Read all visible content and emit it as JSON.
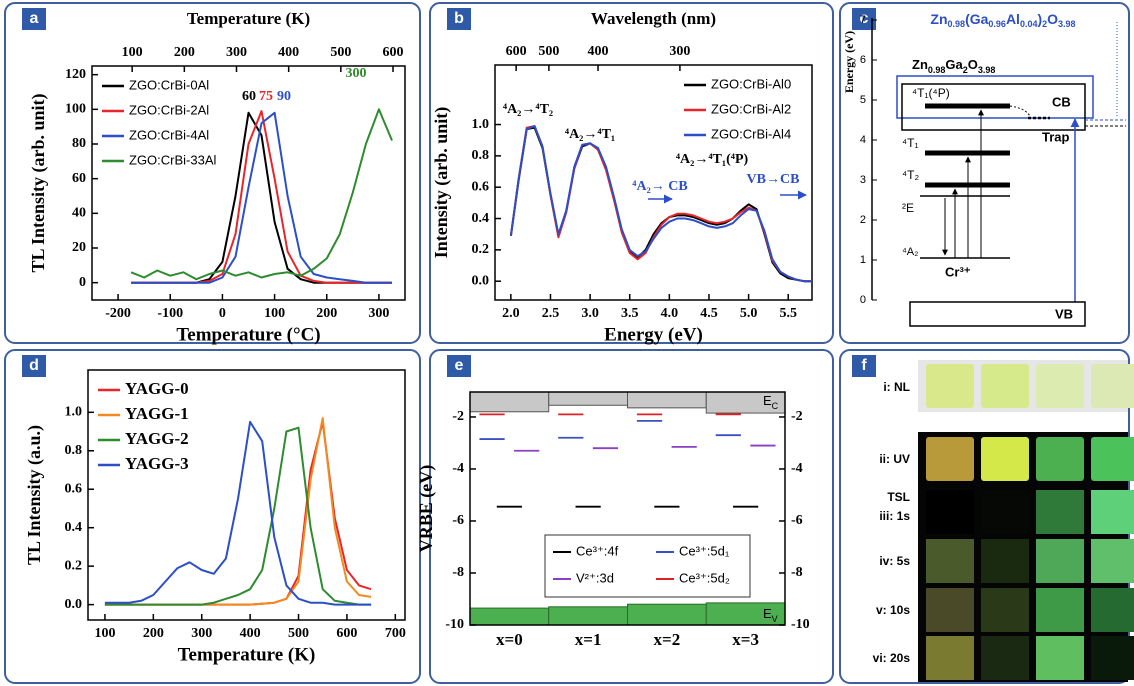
{
  "chart_data": [
    {
      "panel": "a",
      "type": "line",
      "x_label": "Temperature (°C)",
      "y_label": "TL Intensity (arb. unit)",
      "x2_label": "Temperature (K)",
      "x": [
        -175,
        -150,
        -125,
        -100,
        -75,
        -50,
        -25,
        0,
        25,
        50,
        75,
        100,
        125,
        150,
        175,
        200,
        225,
        250,
        275,
        300,
        325
      ],
      "series": [
        {
          "name": "ZGO:CrBi-0Al",
          "color": "#000000",
          "values": [
            0,
            0,
            0,
            0,
            0,
            0,
            2,
            12,
            50,
            98,
            85,
            35,
            8,
            2,
            0,
            0,
            0,
            0,
            0,
            0,
            0
          ]
        },
        {
          "name": "ZGO:CrBi-2Al",
          "color": "#e8262a",
          "values": [
            0,
            0,
            0,
            0,
            0,
            0,
            1,
            5,
            28,
            80,
            99,
            60,
            18,
            4,
            1,
            0,
            0,
            0,
            0,
            0,
            0
          ]
        },
        {
          "name": "ZGO:CrBi-4Al",
          "color": "#2c4fc9",
          "values": [
            0,
            0,
            0,
            0,
            0,
            0,
            0,
            3,
            15,
            55,
            92,
            98,
            50,
            15,
            5,
            3,
            2,
            1,
            0,
            0,
            0
          ]
        },
        {
          "name": "ZGO:CrBi-33Al",
          "color": "#2e8b2e",
          "values": [
            6,
            3,
            7,
            4,
            6,
            2,
            5,
            7,
            4,
            6,
            3,
            5,
            6,
            4,
            8,
            14,
            28,
            52,
            80,
            100,
            82
          ]
        }
      ],
      "xlim": [
        -250,
        350
      ],
      "xticks": [
        -200,
        -100,
        0,
        100,
        200,
        300
      ],
      "x2lim": [
        23,
        623
      ],
      "x2ticks": [
        100,
        200,
        300,
        400,
        500,
        600
      ],
      "ylim": [
        -10,
        125
      ],
      "yticks": [
        0,
        20,
        40,
        60,
        80,
        100,
        120
      ],
      "legend": "upper left",
      "annotations": [
        {
          "text": "60",
          "color": "#000000"
        },
        {
          "text": "75",
          "color": "#e8262a"
        },
        {
          "text": "90",
          "color": "#2c4fc9"
        },
        {
          "text": "300",
          "color": "#2e8b2e"
        }
      ]
    },
    {
      "panel": "b",
      "type": "line",
      "x_label": "Energy (eV)",
      "y_label": "Intensity (arb. unit)",
      "x2_label": "Wavelength (nm)",
      "x": [
        2,
        2.1,
        2.2,
        2.3,
        2.4,
        2.5,
        2.6,
        2.7,
        2.8,
        2.9,
        3,
        3.1,
        3.2,
        3.3,
        3.4,
        3.5,
        3.6,
        3.7,
        3.8,
        3.9,
        4,
        4.1,
        4.2,
        4.3,
        4.4,
        4.5,
        4.6,
        4.7,
        4.8,
        4.9,
        5,
        5.1,
        5.2,
        5.3,
        5.4,
        5.5,
        5.6,
        5.7,
        5.8
      ],
      "series": [
        {
          "name": "ZGO:CrBi-Al0",
          "color": "#000000",
          "values": [
            0.29,
            0.65,
            0.97,
            0.98,
            0.85,
            0.55,
            0.29,
            0.45,
            0.72,
            0.86,
            0.88,
            0.84,
            0.72,
            0.53,
            0.32,
            0.19,
            0.15,
            0.2,
            0.3,
            0.37,
            0.41,
            0.42,
            0.42,
            0.41,
            0.39,
            0.37,
            0.36,
            0.37,
            0.4,
            0.45,
            0.49,
            0.46,
            0.3,
            0.12,
            0.05,
            0.02,
            0.01,
            0,
            0
          ]
        },
        {
          "name": "ZGO:CrBi-Al2",
          "color": "#e8262a",
          "values": [
            0.29,
            0.66,
            0.98,
            0.99,
            0.86,
            0.55,
            0.28,
            0.44,
            0.72,
            0.87,
            0.88,
            0.84,
            0.71,
            0.52,
            0.31,
            0.18,
            0.14,
            0.18,
            0.28,
            0.36,
            0.41,
            0.43,
            0.43,
            0.42,
            0.4,
            0.38,
            0.37,
            0.38,
            0.4,
            0.44,
            0.47,
            0.45,
            0.31,
            0.13,
            0.06,
            0.03,
            0.01,
            0,
            0
          ]
        },
        {
          "name": "ZGO:CrBi-Al4",
          "color": "#2c4fc9",
          "values": [
            0.29,
            0.66,
            0.97,
            0.99,
            0.86,
            0.56,
            0.3,
            0.45,
            0.73,
            0.87,
            0.88,
            0.85,
            0.73,
            0.54,
            0.33,
            0.2,
            0.16,
            0.19,
            0.27,
            0.34,
            0.38,
            0.4,
            0.4,
            0.39,
            0.37,
            0.35,
            0.34,
            0.35,
            0.37,
            0.42,
            0.46,
            0.45,
            0.32,
            0.14,
            0.06,
            0.03,
            0.01,
            0,
            0
          ]
        }
      ],
      "xlim": [
        1.8,
        5.8
      ],
      "xticks": [
        {
          "value": 2,
          "label": "2.0"
        },
        2.5,
        {
          "value": 3,
          "label": "3.0"
        },
        3.5,
        {
          "value": 4,
          "label": "4.0"
        },
        4.5,
        {
          "value": 5,
          "label": "5.0"
        },
        5.5
      ],
      "x2ticks": [
        600,
        500,
        400,
        300
      ],
      "ylim": [
        -0.12,
        1.38
      ],
      "yticks": [
        {
          "value": 0,
          "label": "0.0"
        },
        0.2,
        0.4,
        0.6,
        0.8,
        {
          "value": 1,
          "label": "1.0"
        }
      ],
      "legend": "upper right",
      "annotations": [
        {
          "text": "⁴A₂→⁴T₂",
          "color": "#000000"
        },
        {
          "text": "⁴A₂→⁴T₁",
          "color": "#000000"
        },
        {
          "text": "⁴A₂→⁴T₁(⁴P)",
          "color": "#000000"
        },
        {
          "text": "⁴A₂→ CB",
          "color": "#2c4fc9"
        },
        {
          "text": "VB→CB",
          "color": "#2c4fc9"
        }
      ]
    },
    {
      "panel": "d",
      "type": "line",
      "x_label": "Temperature (K)",
      "y_label": "TL Intensity (a.u.)",
      "x": [
        100,
        125,
        150,
        175,
        200,
        225,
        250,
        275,
        300,
        325,
        350,
        375,
        400,
        425,
        450,
        475,
        500,
        525,
        550,
        575,
        600,
        625,
        650
      ],
      "series": [
        {
          "name": "YAGG-0",
          "color": "#e8262a",
          "values": [
            0,
            0,
            0,
            0,
            0,
            0,
            0,
            0,
            0,
            0,
            0,
            0,
            0,
            0.005,
            0.01,
            0.03,
            0.15,
            0.7,
            0.95,
            0.45,
            0.18,
            0.1,
            0.08
          ]
        },
        {
          "name": "YAGG-1",
          "color": "#f28a1e",
          "values": [
            0,
            0,
            0,
            0,
            0,
            0,
            0,
            0,
            0,
            0,
            0,
            0,
            0,
            0.005,
            0.01,
            0.03,
            0.12,
            0.65,
            0.97,
            0.4,
            0.12,
            0.05,
            0.04
          ]
        },
        {
          "name": "YAGG-2",
          "color": "#2e8b2e",
          "values": [
            0,
            0,
            0,
            0,
            0,
            0,
            0,
            0,
            0,
            0.01,
            0.03,
            0.05,
            0.08,
            0.18,
            0.5,
            0.9,
            0.92,
            0.4,
            0.08,
            0.02,
            0.01,
            0,
            0
          ]
        },
        {
          "name": "YAGG-3",
          "color": "#2c4fc9",
          "values": [
            0.01,
            0.01,
            0.01,
            0.02,
            0.05,
            0.12,
            0.19,
            0.22,
            0.18,
            0.16,
            0.24,
            0.55,
            0.95,
            0.85,
            0.35,
            0.1,
            0.03,
            0.01,
            0.01,
            0,
            0,
            0,
            0
          ]
        }
      ],
      "xlim": [
        65,
        720
      ],
      "xticks": [
        100,
        200,
        300,
        400,
        500,
        600,
        700
      ],
      "ylim": [
        -0.08,
        1.22
      ],
      "yticks": [
        {
          "value": 0,
          "label": "0.0"
        },
        0.2,
        0.4,
        0.6,
        0.8,
        {
          "value": 1,
          "label": "1.0"
        }
      ],
      "legend": "upper left"
    },
    {
      "panel": "e",
      "type": "level",
      "y_label": "VRBE (eV)",
      "categories": [
        "x=0",
        "x=1",
        "x=2",
        "x=3"
      ],
      "series": [
        {
          "name": "Ce³⁺:4f",
          "color": "#000000",
          "values": [
            -5.45,
            -5.45,
            -5.45,
            -5.45
          ]
        },
        {
          "name": "Ce³⁺:5d₁",
          "color": "#3b4fc4",
          "values": [
            -2.85,
            -2.8,
            -2.15,
            -2.7
          ]
        },
        {
          "name": "V²⁺:3d",
          "color": "#8a3fc4",
          "values": [
            -3.3,
            -3.2,
            -3.15,
            -3.1
          ]
        },
        {
          "name": "Ce³⁺:5d₂",
          "color": "#e02020",
          "values": [
            -1.9,
            -1.9,
            -1.9,
            -1.9
          ]
        }
      ],
      "cb_edge": {
        "label": [
          "E",
          "C"
        ],
        "color": "#c8c8c8",
        "values": [
          -1.8,
          -1.55,
          -1.65,
          -1.85
        ]
      },
      "vb_edge": {
        "label": [
          "E",
          "V"
        ],
        "color": "#4caf50",
        "values": [
          -9.35,
          -9.3,
          -9.2,
          -9.15
        ]
      },
      "ylim": [
        -10,
        -1.04
      ],
      "yticks": [
        -10,
        -8,
        -6,
        -4,
        -2
      ],
      "y2lim": [
        -10,
        -1.04
      ],
      "y2ticks": [
        -10,
        -8,
        -6,
        -4,
        -2
      ],
      "legend": "lower center"
    }
  ],
  "diagram": {
    "panel": "c",
    "y_label": "Energy (eV)",
    "yticks": [
      0,
      1,
      2,
      3,
      4,
      5,
      6,
      7
    ],
    "formula_al": [
      "Zn",
      "0.98",
      "(Ga",
      "0.96",
      "Al",
      "0.04",
      ")",
      "2",
      "O",
      "3.98"
    ],
    "formula": [
      "Zn",
      "0.98",
      "Ga",
      "2",
      "O",
      "3.98"
    ],
    "levels": [
      "⁴T₁(⁴P)",
      "⁴T₁",
      "⁴T₂",
      "²E",
      "⁴A₂"
    ],
    "ion": "Cr³⁺",
    "cb": "CB",
    "vb": "VB",
    "trap": "Trap"
  },
  "photos": {
    "panel": "f",
    "rows": [
      "i: NL",
      "ii: UV",
      "iii: 1s",
      "iv: 5s",
      "v: 10s",
      "vi: 20s"
    ],
    "group": "TSL"
  }
}
